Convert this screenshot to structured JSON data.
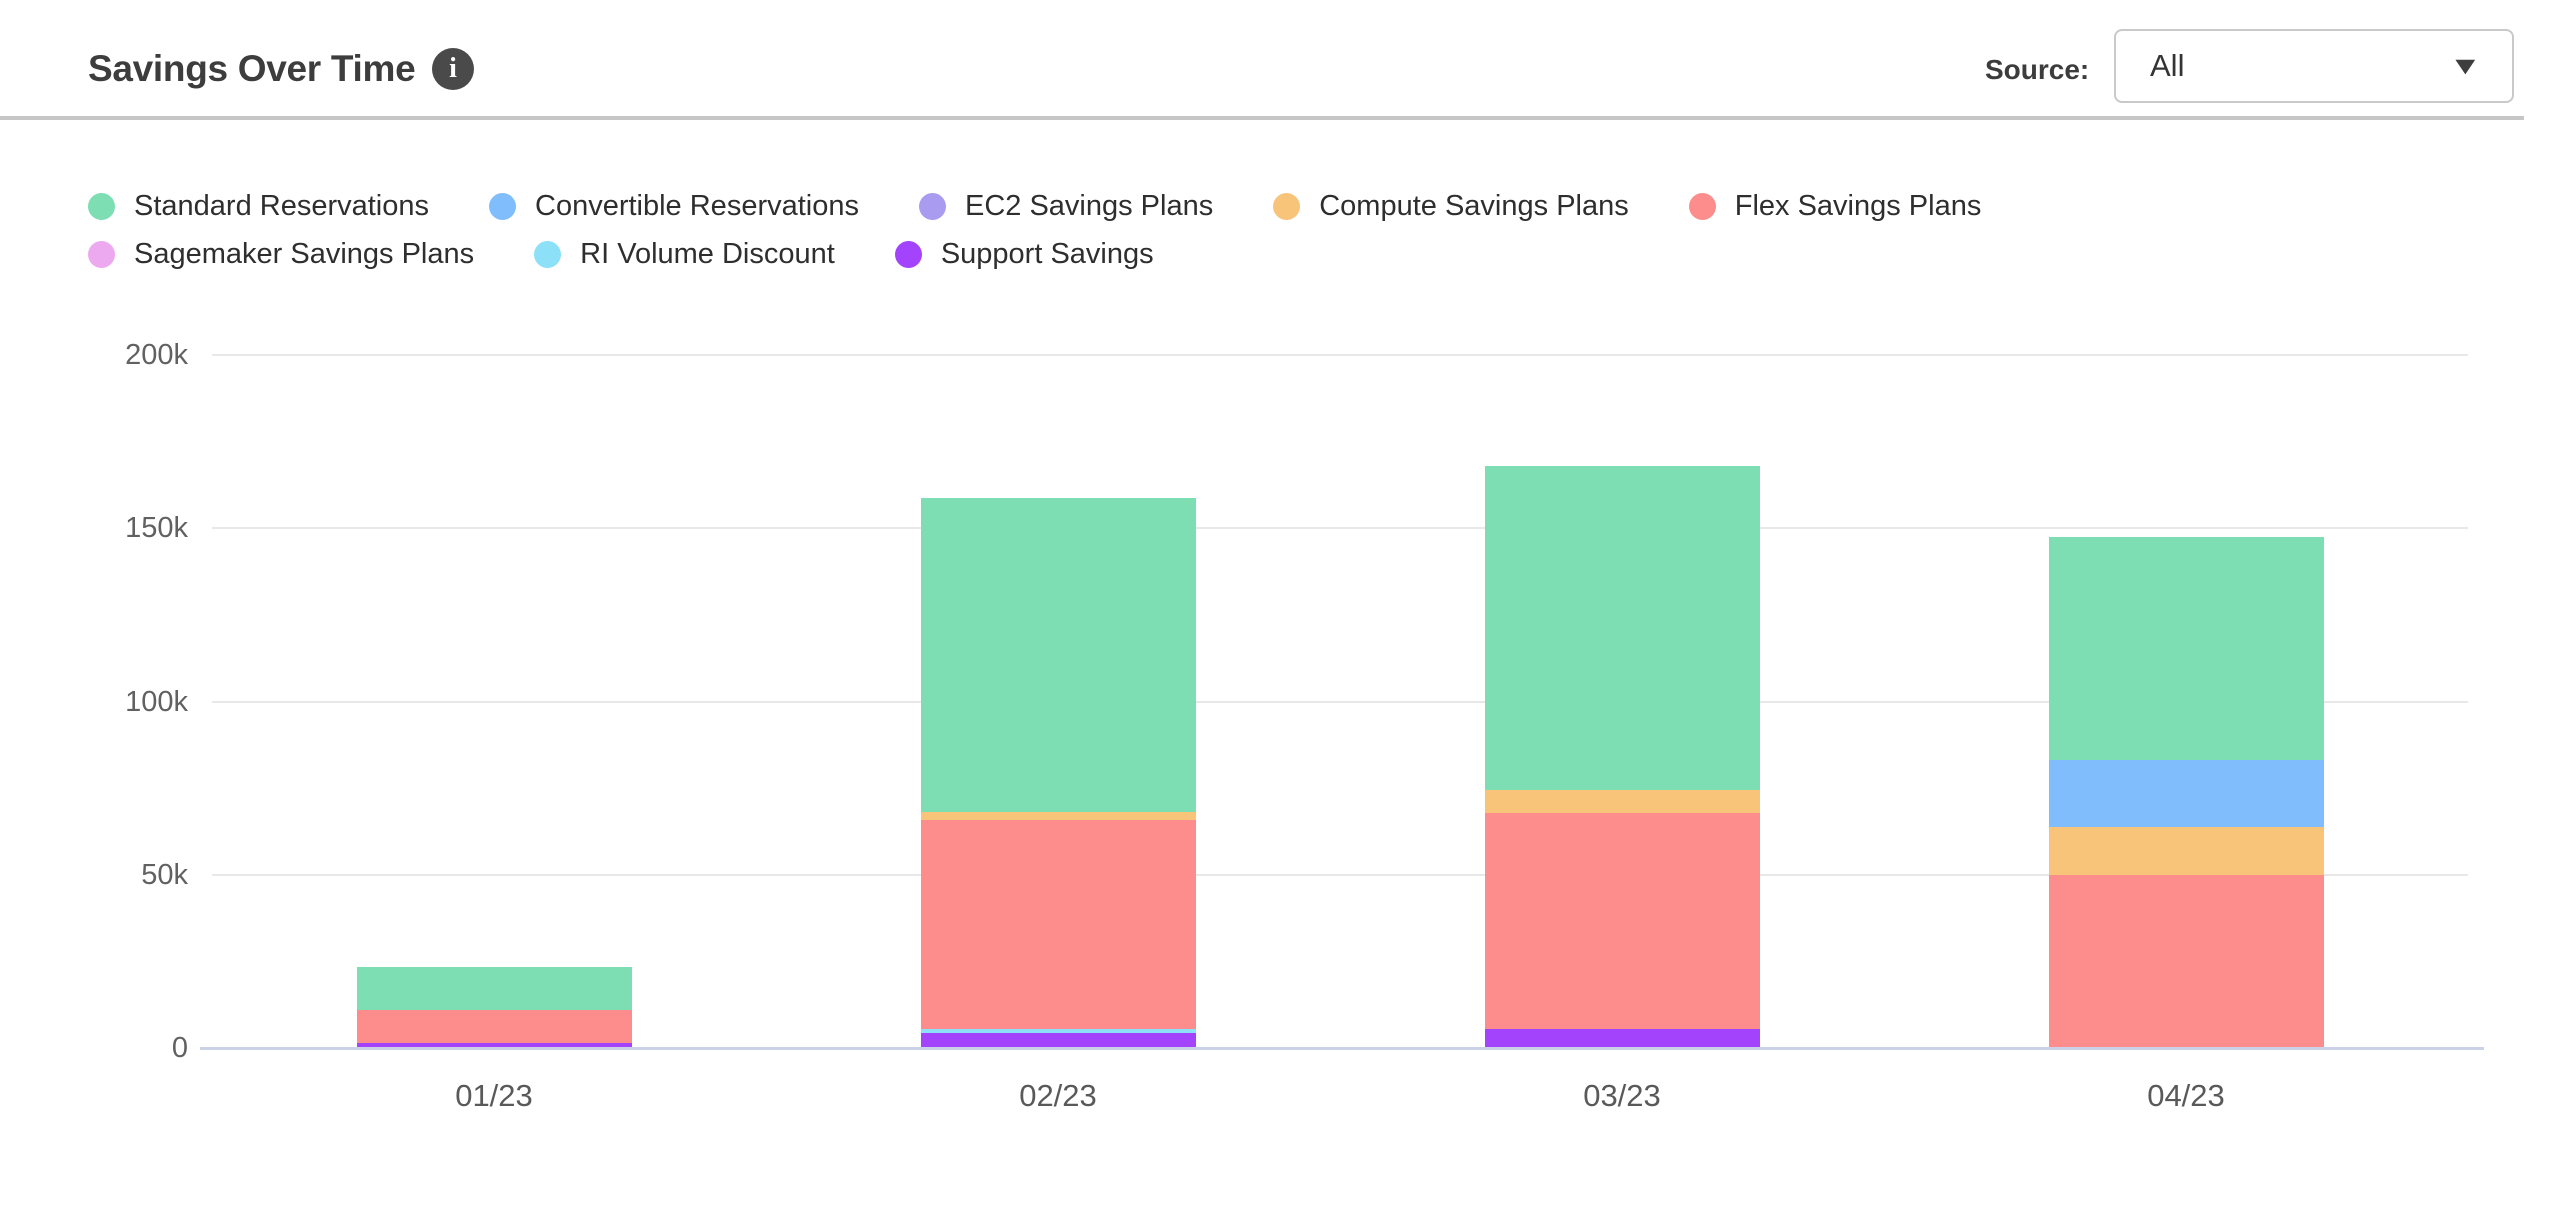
{
  "header": {
    "title": "Savings Over Time",
    "source_label": "Source:",
    "source_value": "All"
  },
  "icons": {
    "info": "i",
    "dropdown_caret": "▼"
  },
  "legend": {
    "rows": [
      [
        "Standard Reservations",
        "Convertible Reservations",
        "EC2 Savings Plans",
        "Compute Savings Plans",
        "Flex Savings Plans"
      ],
      [
        "Sagemaker Savings Plans",
        "RI Volume Discount",
        "Support Savings"
      ]
    ]
  },
  "chart_data": {
    "type": "bar",
    "stacked": true,
    "title": "Savings Over Time",
    "categories": [
      "01/23",
      "02/23",
      "03/23",
      "04/23"
    ],
    "series": [
      {
        "name": "Standard Reservations",
        "color": "#7dddb3",
        "values": [
          12500,
          90500,
          93500,
          64500
        ]
      },
      {
        "name": "Convertible Reservations",
        "color": "#7fbdfc",
        "values": [
          0,
          0,
          0,
          19400
        ]
      },
      {
        "name": "EC2 Savings Plans",
        "color": "#a89bf0",
        "values": [
          0,
          0,
          0,
          0
        ]
      },
      {
        "name": "Compute Savings Plans",
        "color": "#f8c47a",
        "values": [
          0,
          2400,
          6600,
          13700
        ]
      },
      {
        "name": "Flex Savings Plans",
        "color": "#fd8c8c",
        "values": [
          9500,
          60300,
          62400,
          50000
        ]
      },
      {
        "name": "Sagemaker Savings Plans",
        "color": "#eda9f0",
        "values": [
          0,
          0,
          0,
          0
        ]
      },
      {
        "name": "RI Volume Discount",
        "color": "#8ce1f8",
        "values": [
          0,
          1200,
          0,
          0
        ]
      },
      {
        "name": "Support Savings",
        "color": "#a344fc",
        "values": [
          1500,
          4200,
          5500,
          0
        ]
      }
    ],
    "stack_order_bottom_to_top": [
      "Support Savings",
      "RI Volume Discount",
      "Sagemaker Savings Plans",
      "Flex Savings Plans",
      "Compute Savings Plans",
      "EC2 Savings Plans",
      "Convertible Reservations",
      "Standard Reservations"
    ],
    "bar_totals": [
      23500,
      158600,
      168000,
      147600
    ],
    "xlabel": "",
    "ylabel": "",
    "ylim": [
      0,
      200000
    ],
    "y_tick_labels": [
      "0",
      "50k",
      "100k",
      "150k",
      "200k"
    ],
    "grid": true,
    "legend_position": "top",
    "axis_line_color": "#cbd2e8",
    "gridline_color": "#e8e8e8"
  }
}
